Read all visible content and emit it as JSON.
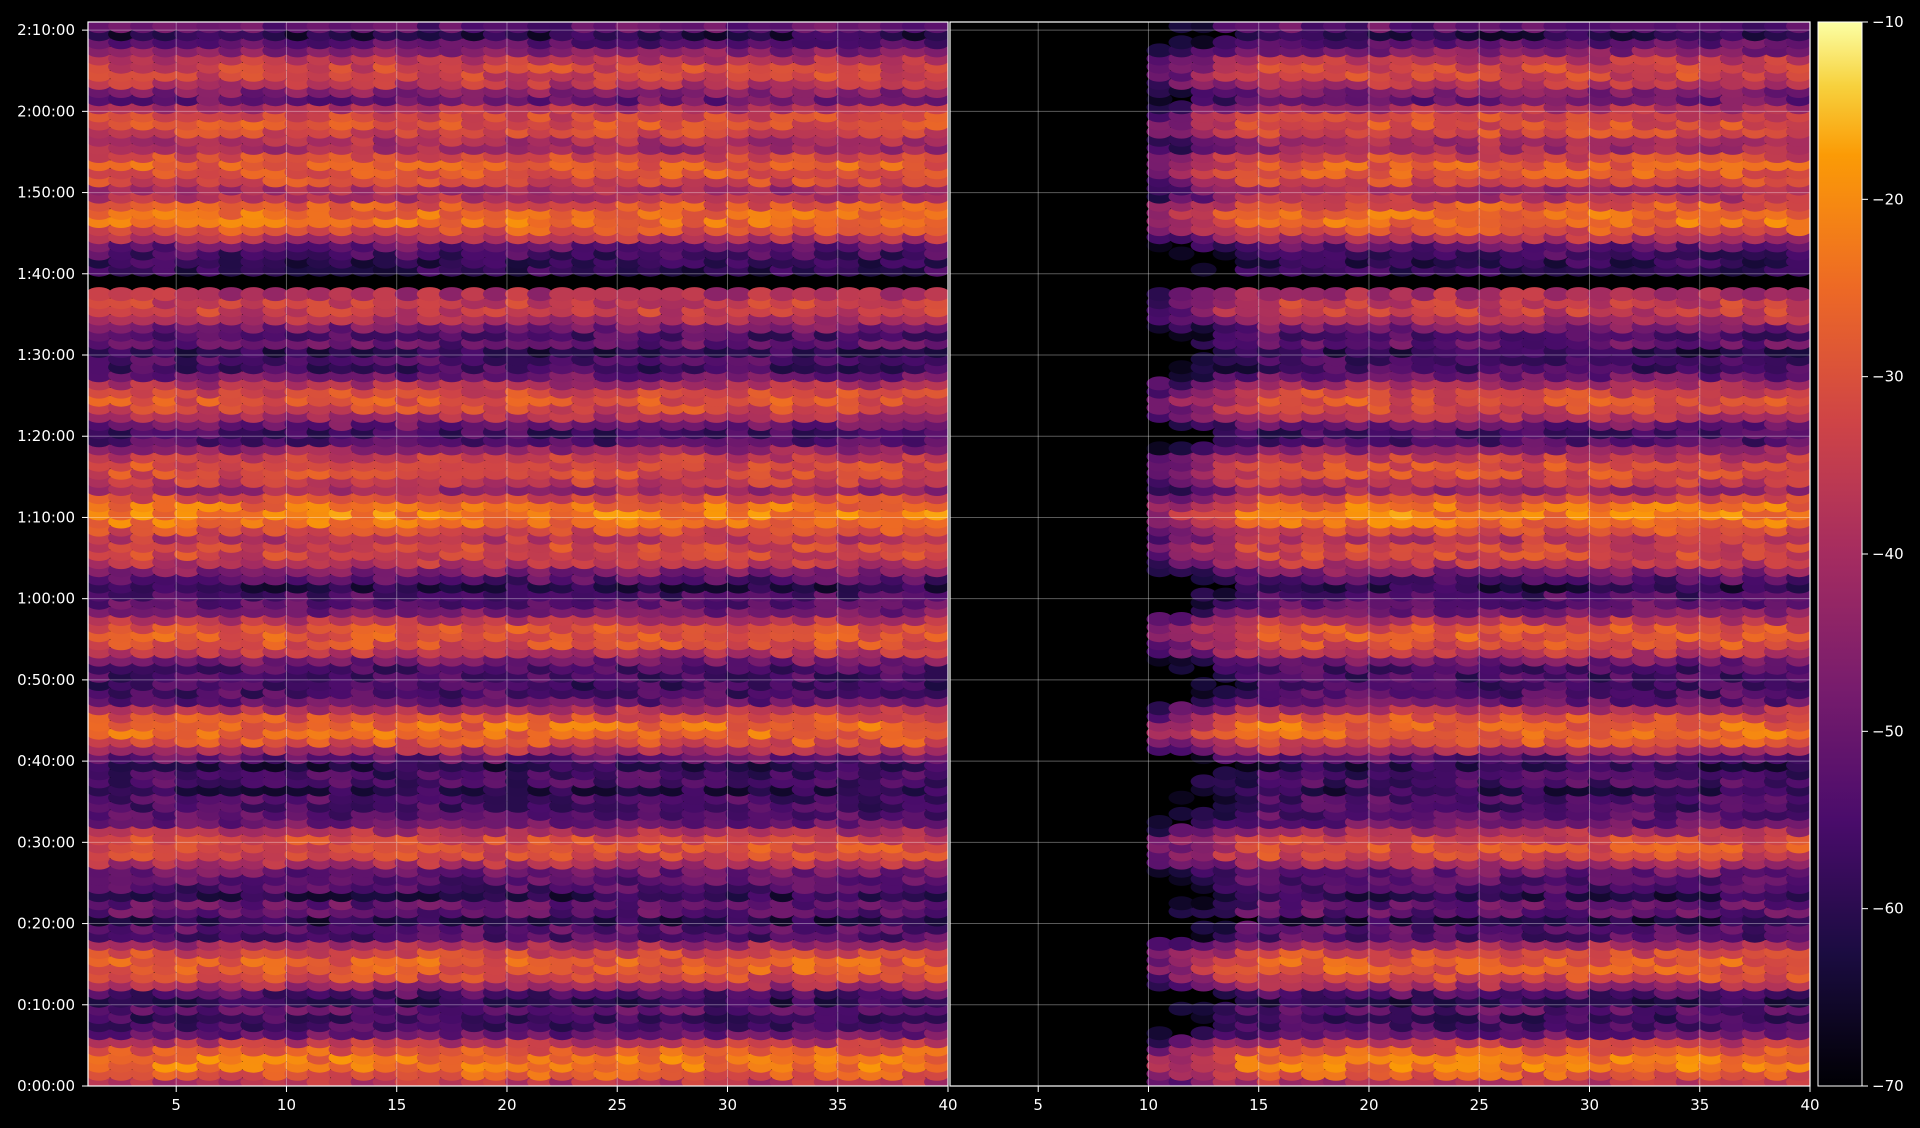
{
  "chart_data": {
    "type": "heatmap",
    "title": "",
    "colormap": "inferno",
    "background": "#000000",
    "grid": true,
    "grid_color": "#ffffff",
    "panels": [
      {
        "name": "",
        "x_range": [
          1,
          40
        ],
        "x_ticks": [
          "5",
          "10",
          "15",
          "20",
          "25",
          "30",
          "35",
          "40"
        ],
        "active_x_start": 1,
        "has_y_axis": true
      },
      {
        "name": "",
        "x_range": [
          1,
          40
        ],
        "x_ticks": [
          "5",
          "10",
          "15",
          "20",
          "25",
          "30",
          "35",
          "40"
        ],
        "active_x_start": 10,
        "has_y_axis": false
      }
    ],
    "y_axis": {
      "unit": "time h:mm:ss",
      "range_minutes": [
        0,
        131
      ],
      "tick_values_minutes": [
        0,
        10,
        20,
        30,
        40,
        50,
        60,
        70,
        80,
        90,
        100,
        110,
        120,
        130
      ],
      "tick_labels": [
        "0:00:00",
        "0:10:00",
        "0:20:00",
        "0:30:00",
        "0:40:00",
        "0:50:00",
        "1:00:00",
        "1:10:00",
        "1:20:00",
        "1:30:00",
        "1:40:00",
        "1:50:00",
        "2:00:00",
        "2:10:00"
      ]
    },
    "gaps_minutes": [
      [
        98.5,
        99.5
      ]
    ],
    "bright_bands": [
      {
        "t": 3.0,
        "level": -23
      },
      {
        "t": 15.0,
        "level": -27
      },
      {
        "t": 29.5,
        "level": -30
      },
      {
        "t": 44.0,
        "level": -25
      },
      {
        "t": 55.5,
        "level": -28
      },
      {
        "t": 66.0,
        "level": -32
      },
      {
        "t": 70.5,
        "level": -22
      },
      {
        "t": 76.0,
        "level": -30
      },
      {
        "t": 84.5,
        "level": -30
      },
      {
        "t": 96.0,
        "level": -34
      },
      {
        "t": 107.0,
        "level": -24
      },
      {
        "t": 113.0,
        "level": -27
      },
      {
        "t": 118.5,
        "level": -30
      },
      {
        "t": 125.0,
        "level": -32
      }
    ],
    "colorbar": {
      "range": [
        -70,
        -10
      ],
      "ticks": [
        "−70",
        "−60",
        "−50",
        "−40",
        "−30",
        "−20",
        "−10"
      ],
      "tick_values": [
        -70,
        -60,
        -50,
        -40,
        -30,
        -20,
        -10
      ]
    }
  }
}
